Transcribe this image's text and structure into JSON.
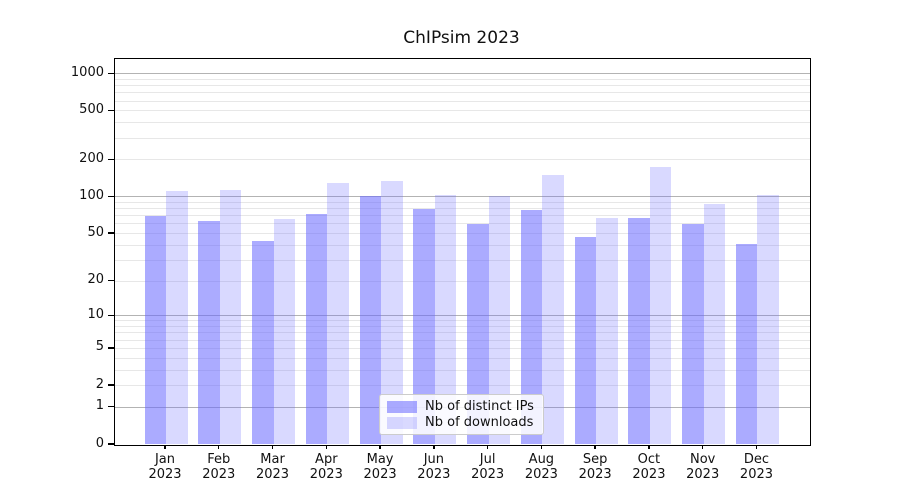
{
  "chart_data": {
    "type": "bar",
    "title": "ChIPsim 2023",
    "categories": [
      "Jan",
      "Feb",
      "Mar",
      "Apr",
      "May",
      "Jun",
      "Jul",
      "Aug",
      "Sep",
      "Oct",
      "Nov",
      "Dec"
    ],
    "year_label": "2023",
    "series": [
      {
        "name": "Nb of distinct IPs",
        "color": "rgba(102,102,255,0.55)",
        "values": [
          70,
          64,
          43,
          72,
          102,
          80,
          60,
          78,
          47,
          67,
          60,
          41
        ]
      },
      {
        "name": "Nb of downloads",
        "color": "rgba(102,102,255,0.25)",
        "values": [
          112,
          114,
          66,
          130,
          134,
          104,
          101,
          152,
          67,
          176,
          87,
          104
        ]
      }
    ],
    "y_axis": {
      "scale": "log1p",
      "tick_labels": [
        "0",
        "1",
        "2",
        "5",
        "10",
        "20",
        "50",
        "100",
        "200",
        "500",
        "1000"
      ],
      "tick_values": [
        0,
        1,
        2,
        5,
        10,
        20,
        50,
        100,
        200,
        500,
        1000
      ],
      "major_grid_values": [
        1,
        10,
        100,
        1000
      ],
      "minor_grid_values": [
        2,
        3,
        4,
        5,
        6,
        7,
        8,
        9,
        20,
        30,
        40,
        50,
        60,
        70,
        80,
        90,
        200,
        300,
        400,
        500,
        600,
        700,
        800,
        900
      ],
      "ylim_bottom_label": "0"
    },
    "legend_position": "bottom-center",
    "grid": "horizontal",
    "colors": {
      "major_grid": "#b3b3b3",
      "minor_grid": "#e7e7e7",
      "axis": "#000000",
      "text": "#111111",
      "background": "#ffffff"
    }
  }
}
